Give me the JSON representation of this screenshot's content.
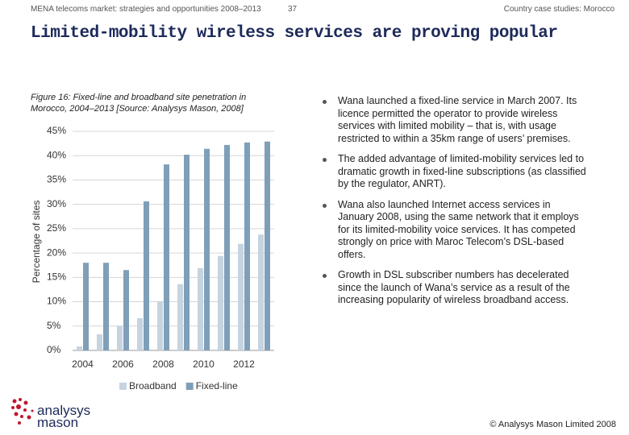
{
  "header": {
    "left": "MENA telecoms market: strategies and opportunities 2008–2013",
    "page": "37",
    "right": "Country case studies: Morocco"
  },
  "title": "Limited-mobility wireless services are proving popular",
  "figure_caption": "Figure 16: Fixed-line and broadband site penetration in Morocco, 2004–2013 [Source: Analysys Mason, 2008]",
  "chart_data": {
    "type": "bar",
    "y_label": "Percentage of sites",
    "categories": [
      "2004",
      null,
      "2006",
      null,
      "2008",
      null,
      "2010",
      null,
      "2012",
      null
    ],
    "series": [
      {
        "name": "Broadband",
        "color": "#c6d4e0",
        "values": [
          0.8,
          3.3,
          5,
          6.6,
          10.1,
          13.6,
          16.9,
          19.4,
          21.9,
          23.8
        ]
      },
      {
        "name": "Fixed-line",
        "color": "#7f9fb9",
        "values": [
          18,
          18,
          16.5,
          30.6,
          38.2,
          40.2,
          41.4,
          42.2,
          42.7,
          42.9
        ]
      }
    ],
    "ylim": [
      0,
      45
    ],
    "yticks": [
      {
        "value": 0,
        "label": "0%"
      },
      {
        "value": 5,
        "label": "5%"
      },
      {
        "value": 10,
        "label": "10%"
      },
      {
        "value": 15,
        "label": "15%"
      },
      {
        "value": 20,
        "label": "20%"
      },
      {
        "value": 25,
        "label": "25%"
      },
      {
        "value": 30,
        "label": "30%"
      },
      {
        "value": 35,
        "label": "35%"
      },
      {
        "value": 40,
        "label": "40%"
      },
      {
        "value": 45,
        "label": "45%"
      }
    ],
    "grid": true
  },
  "bullets": [
    "Wana launched a fixed-line service in March 2007. Its licence permitted the operator to provide wireless services with limited mobility – that is, with usage restricted to within a 35km range of users’ premises.",
    "The added advantage of limited-mobility services led to dramatic growth in fixed-line subscriptions (as classified by the regulator, ANRT).",
    "Wana also launched Internet access services in January 2008, using the same network that it employs for its limited-mobility voice services. It has competed strongly on price with Maroc Telecom’s DSL-based offers.",
    "Growth in DSL subscriber numbers has decelerated since the launch of Wana’s service as a result of the increasing popularity of wireless broadband access."
  ],
  "logo": {
    "line1": "analysys",
    "line2": "mason"
  },
  "footer": "© Analysys Mason Limited 2008"
}
